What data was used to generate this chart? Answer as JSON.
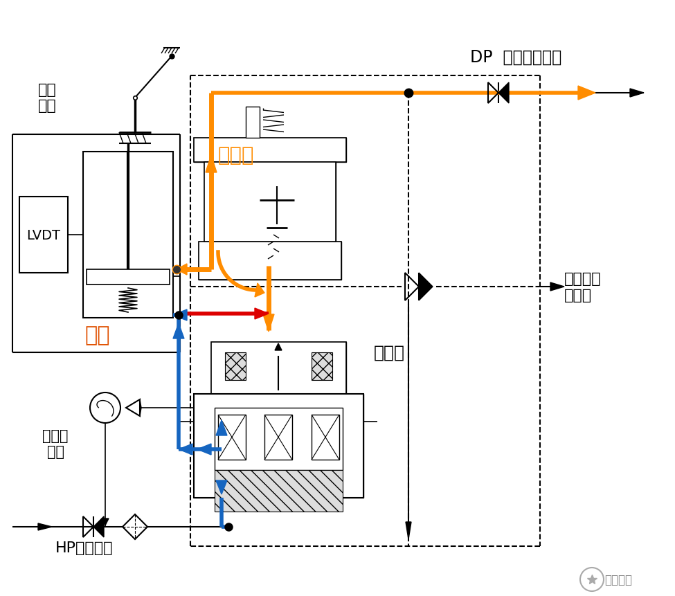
{
  "bg_color": "#ffffff",
  "orange": "#FF8C00",
  "blue": "#1565C0",
  "red": "#DD0000",
  "black": "#000000",
  "gray_hatch": "#aaaaaa",
  "title_dp": "DP  有压回油母管",
  "label_high_pressure_valve": "高压\n调门",
  "label_lvdt": "LVDT",
  "label_oil_cylinder": "油缸",
  "label_unload_valve": "卸载阀",
  "label_servo_valve": "伺服阀",
  "label_servo_amp": "伺服放\n大器",
  "label_hp_supply": "HP高压供油",
  "label_emergency": "危急遮断\n油母管",
  "label_watermark": "热控课堂",
  "figsize": [
    9.75,
    8.62
  ],
  "dpi": 100
}
